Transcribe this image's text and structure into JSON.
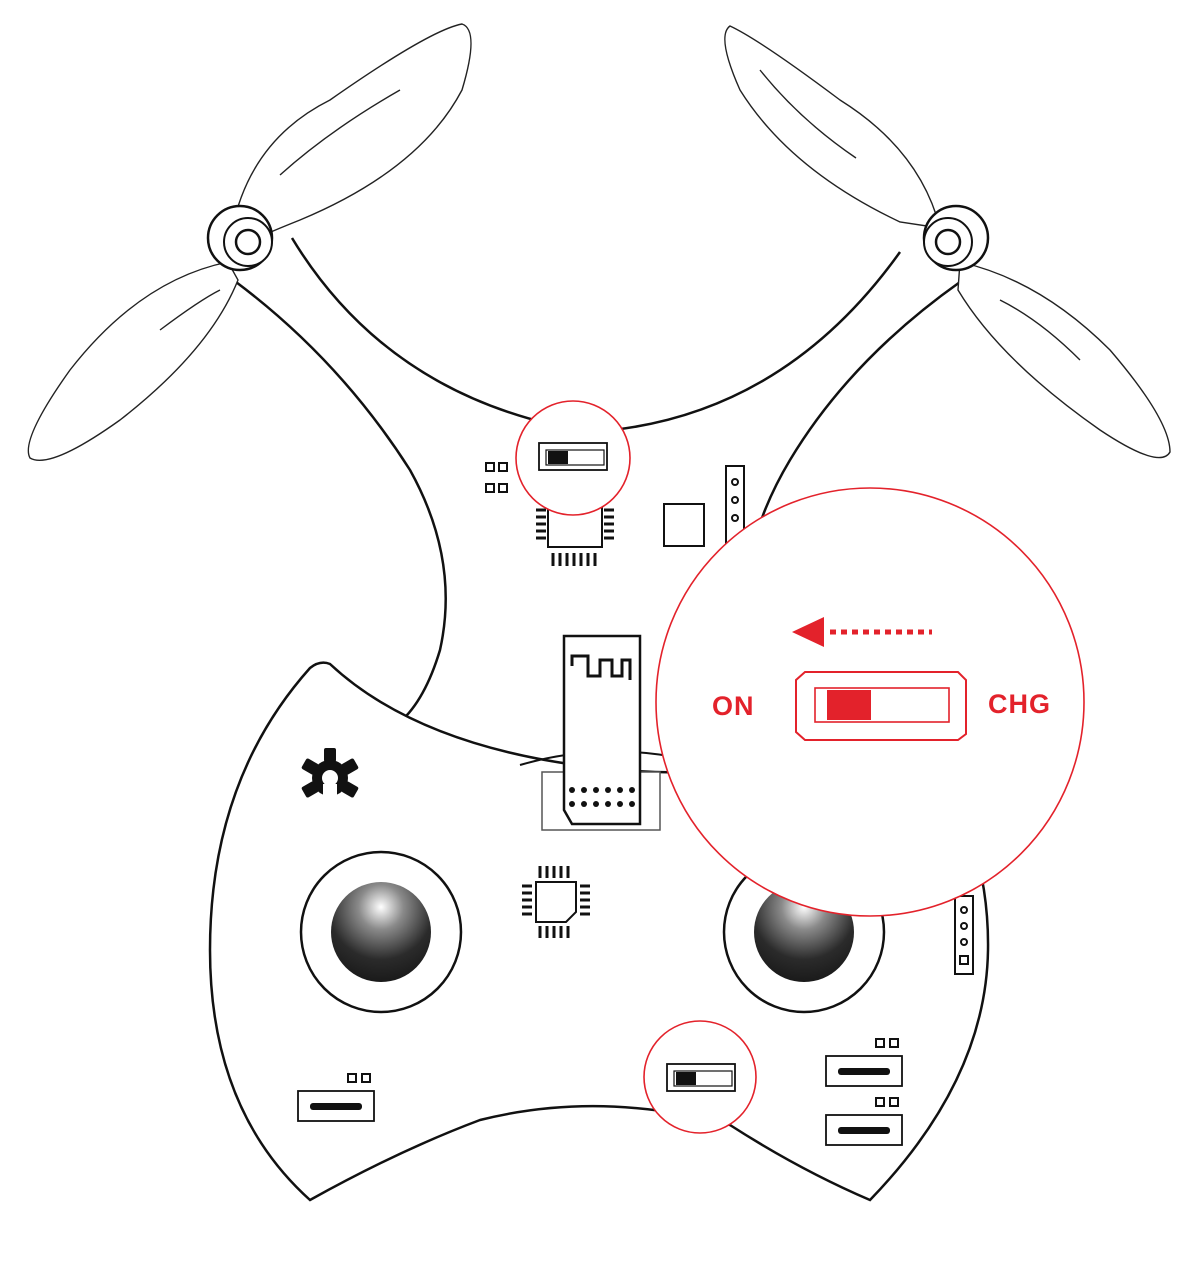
{
  "diagram": {
    "switch_callout": {
      "left_label": "ON",
      "right_label": "CHG",
      "arrow_direction": "left",
      "switch_position": "ON"
    },
    "colors": {
      "accent": "#e3222b",
      "line": "#111111",
      "background": "#ffffff"
    },
    "icons": [
      "propeller-icon",
      "gear-icon",
      "antenna-icon",
      "joystick-icon",
      "slide-switch-icon"
    ]
  }
}
